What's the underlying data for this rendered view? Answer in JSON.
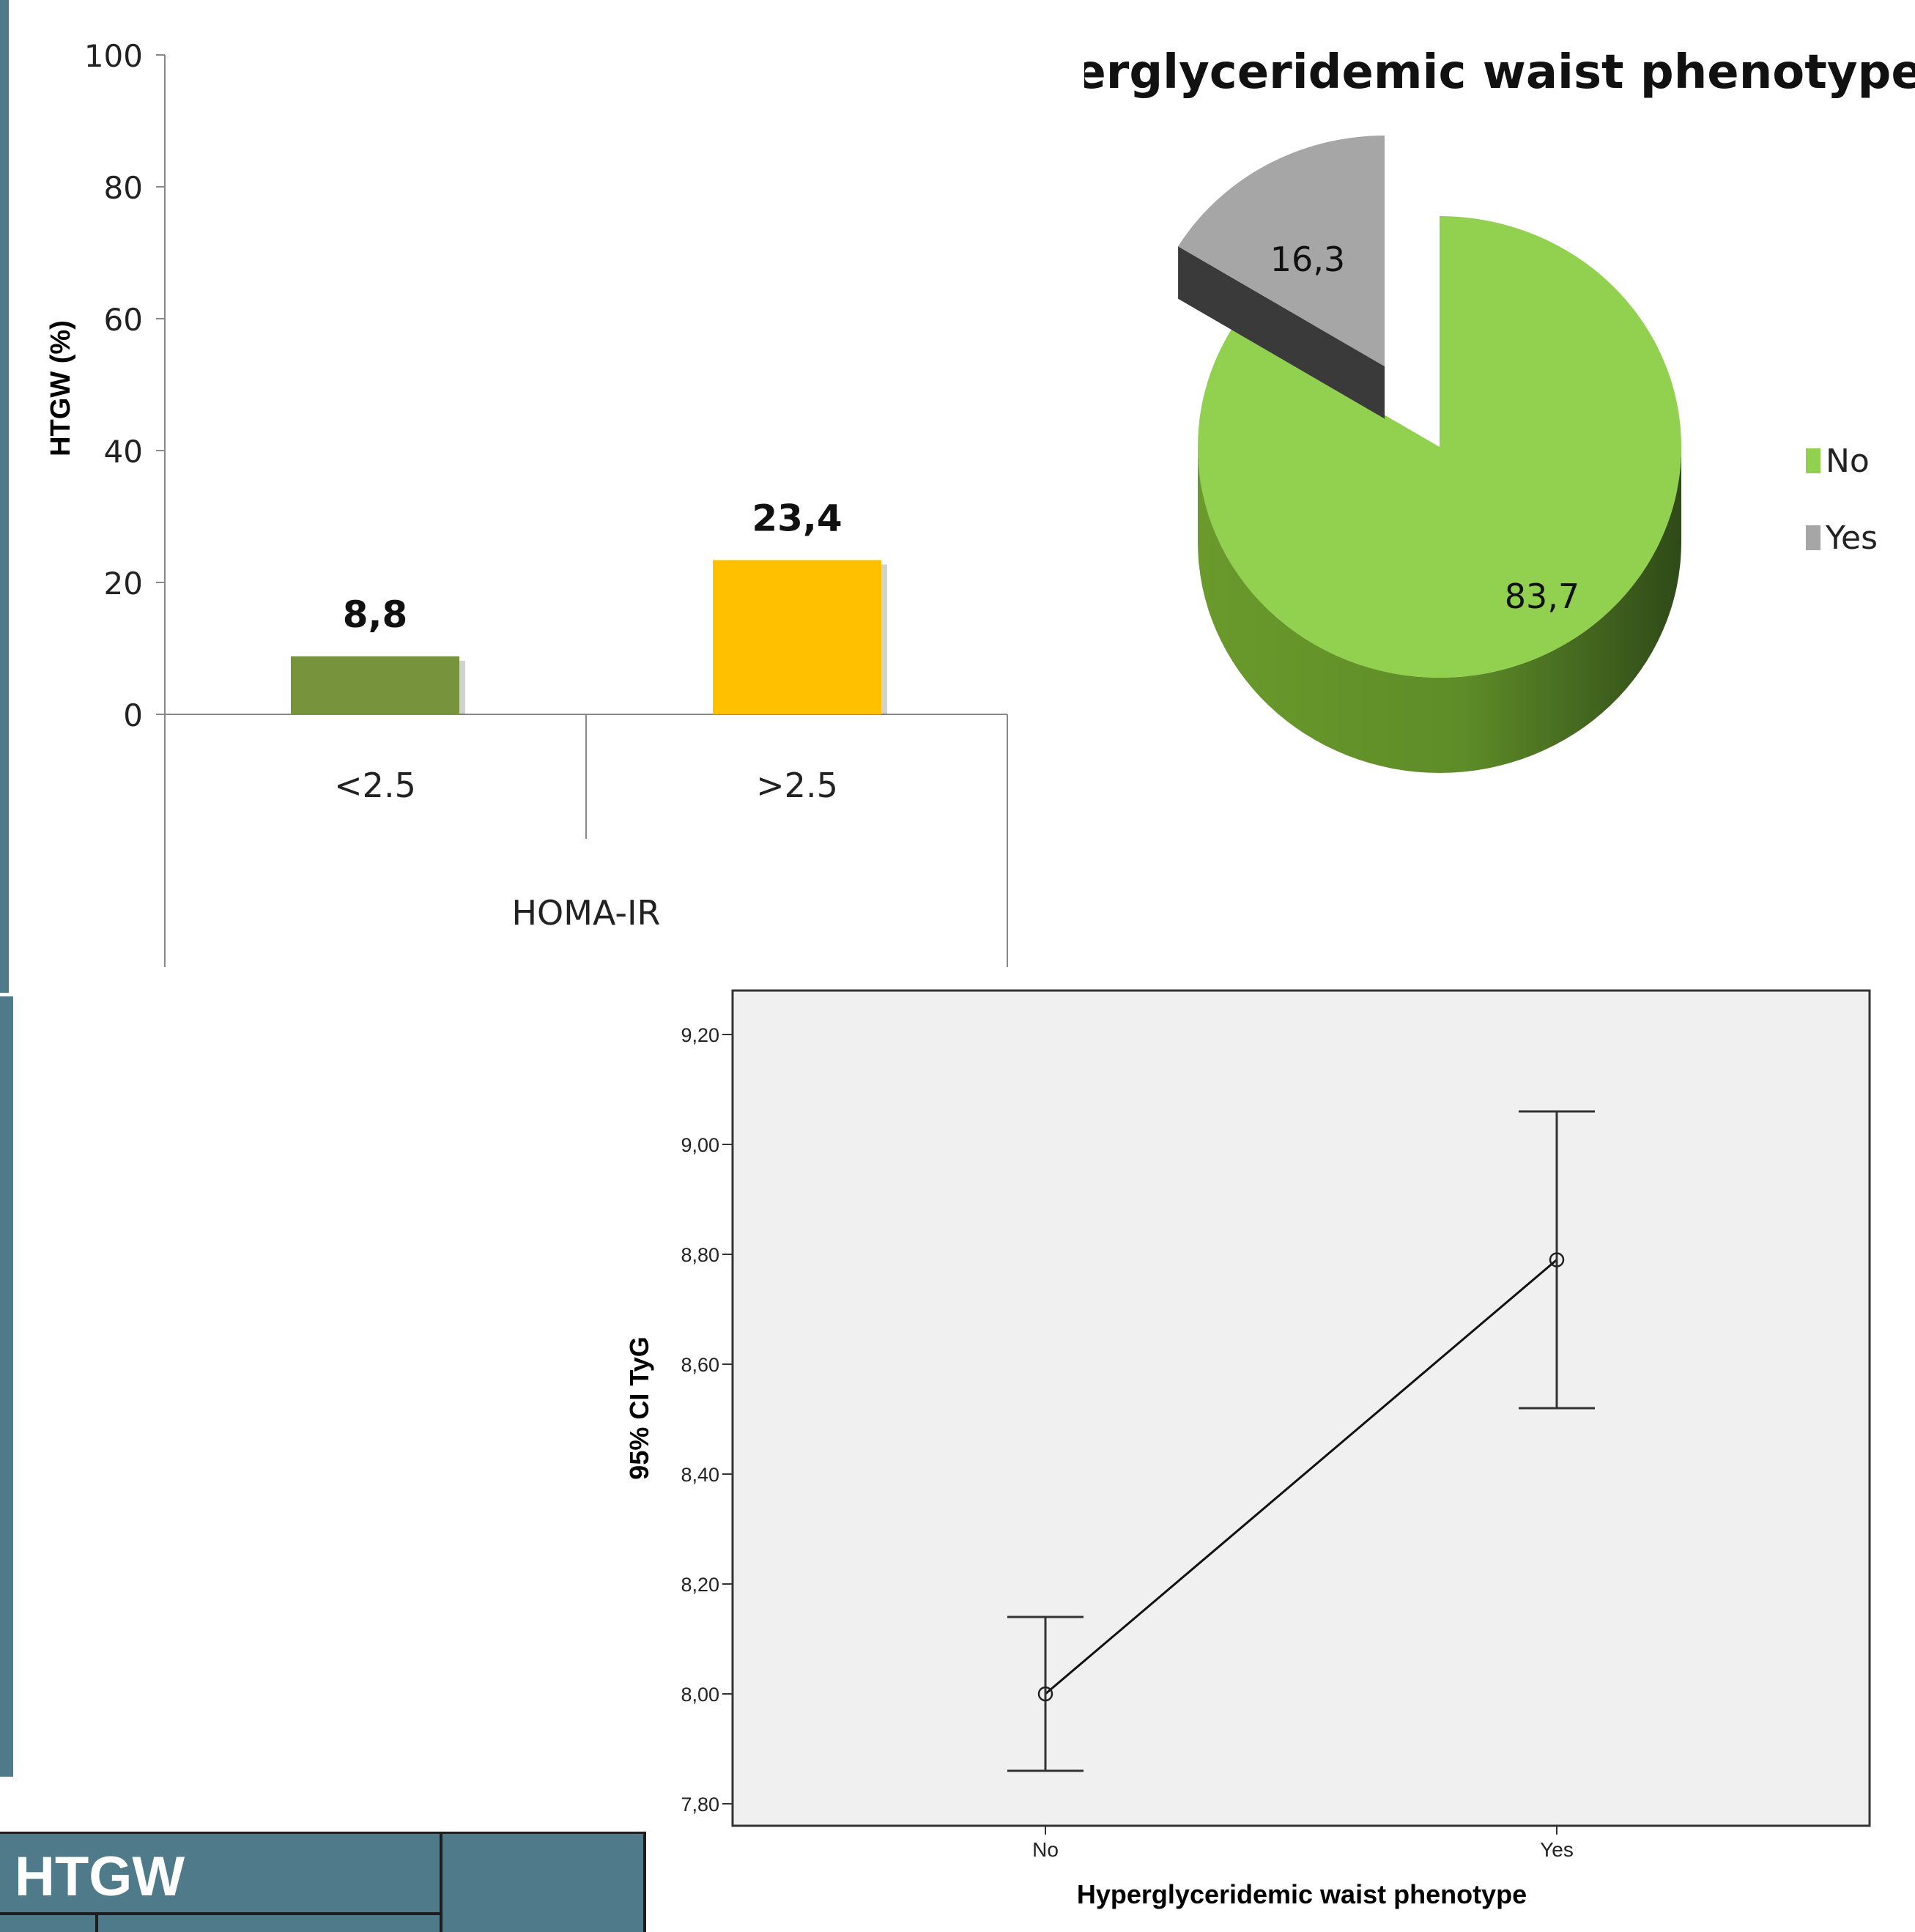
{
  "chart_data": [
    {
      "type": "bar",
      "ylabel": "HTGW (%)",
      "xlabel": "HOMA-IR",
      "ylim": [
        0,
        100
      ],
      "yticks": [
        "0",
        "20",
        "40",
        "60",
        "80",
        "100"
      ],
      "categories": [
        "<2.5",
        ">2.5"
      ],
      "values": [
        8.8,
        23.4
      ],
      "data_labels": [
        "8,8",
        "23,4"
      ],
      "colors": [
        "#77933c",
        "#ffc000"
      ],
      "grid": false
    },
    {
      "type": "pie",
      "title": "Hyperglyceridemic waist phenotype",
      "categories": [
        "No",
        "Yes"
      ],
      "values": [
        83.7,
        16.3
      ],
      "data_labels": [
        "83,7",
        "16,3"
      ],
      "colors": [
        "#92d050",
        "#a6a6a6"
      ],
      "legend": "right"
    },
    {
      "type": "line",
      "subtype": "error-bar",
      "xlabel": "Hyperglyceridemic waist phenotype",
      "ylabel": "95% CI TyG",
      "categories": [
        "No",
        "Yes"
      ],
      "mean": [
        8.0,
        8.79
      ],
      "ci_low": [
        7.86,
        8.52
      ],
      "ci_high": [
        8.14,
        9.06
      ],
      "ylim": [
        7.76,
        9.28
      ],
      "yticks": [
        "7,80",
        "8,00",
        "8,20",
        "8,40",
        "8,60",
        "8,80",
        "9,00",
        "9,20"
      ],
      "background": "#f0f0f0",
      "grid": false
    }
  ],
  "table": {
    "header": "HTGW"
  }
}
